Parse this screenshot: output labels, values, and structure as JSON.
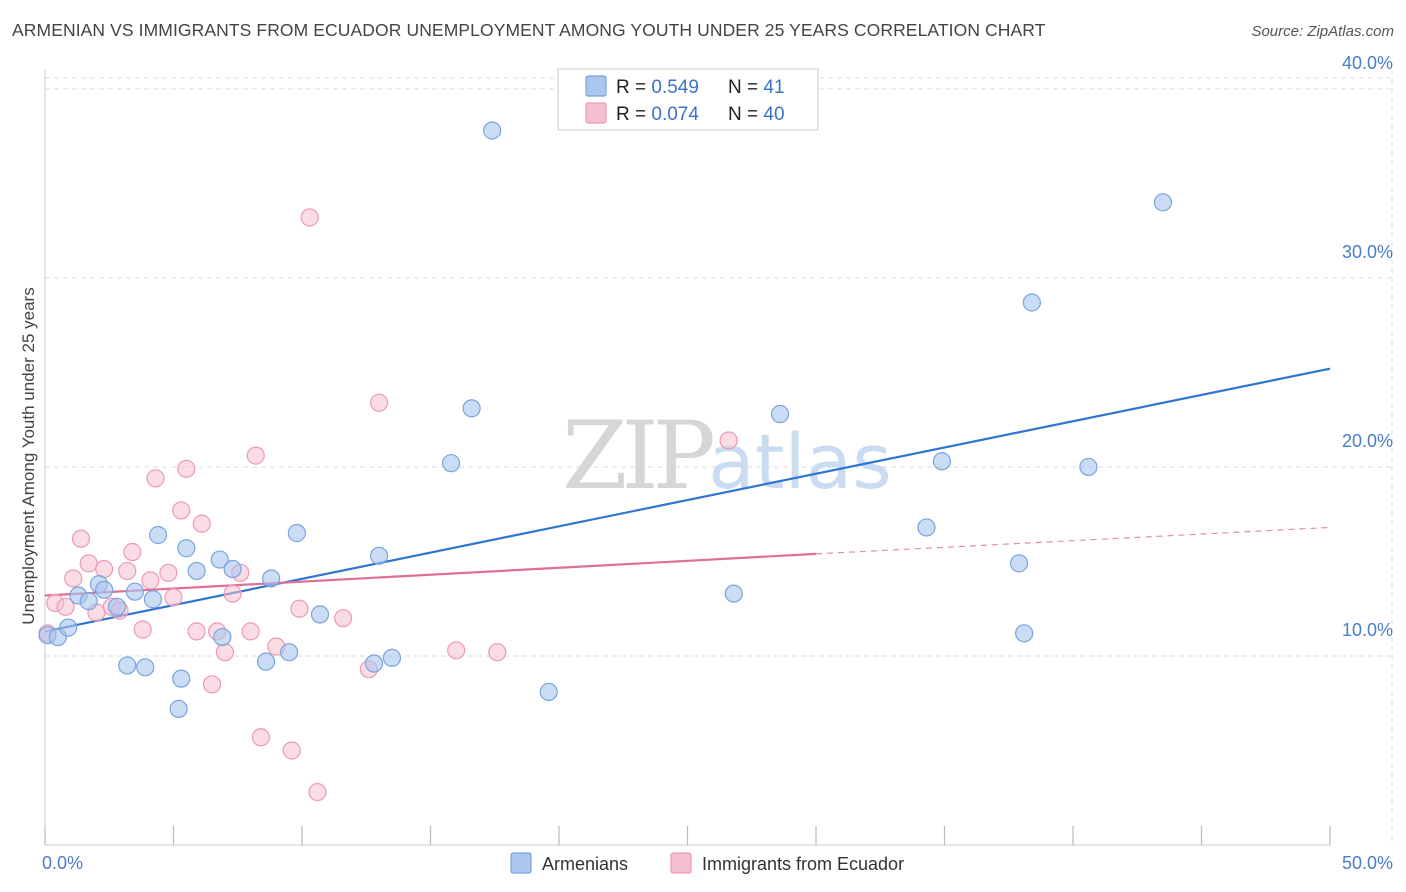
{
  "title": "ARMENIAN VS IMMIGRANTS FROM ECUADOR UNEMPLOYMENT AMONG YOUTH UNDER 25 YEARS CORRELATION CHART",
  "source": "Source: ZipAtlas.com",
  "watermark": {
    "zip": "ZIP",
    "atlas": "atlas"
  },
  "colors": {
    "armenians_fill": "#a9c6ef",
    "armenians_stroke": "#7aa4dc",
    "armenians_line": "#2f74d0",
    "ecuador_fill": "#f6bfd0",
    "ecuador_stroke": "#ec9ab5",
    "ecuador_line": "#e06f98",
    "tick_text": "#4a7cc7",
    "grid": "#dddddd"
  },
  "legend": {
    "rows": [
      {
        "r_label": "R = ",
        "r_value": "0.549",
        "n_label": "N = ",
        "n_value": "41"
      },
      {
        "r_label": "R = ",
        "r_value": "0.074",
        "n_label": "N = ",
        "n_value": "40"
      }
    ]
  },
  "bottom_legend": [
    "Armenians",
    "Immigrants from Ecuador"
  ],
  "chart_data": {
    "type": "scatter",
    "title": "ARMENIAN VS IMMIGRANTS FROM ECUADOR UNEMPLOYMENT AMONG YOUTH UNDER 25 YEARS CORRELATION CHART",
    "xlabel": "",
    "ylabel": "Unemployment Among Youth under 25 years",
    "xlim": [
      0,
      50
    ],
    "ylim": [
      0,
      41
    ],
    "x_tick_labels": [
      {
        "value": 0,
        "label": "0.0%"
      },
      {
        "value": 50,
        "label": "50.0%"
      }
    ],
    "x_minor_ticks": [
      0,
      5,
      10,
      15,
      20,
      25,
      30,
      35,
      40,
      45,
      50
    ],
    "y_ticks": [
      {
        "value": 10,
        "label": "10.0%"
      },
      {
        "value": 20,
        "label": "20.0%"
      },
      {
        "value": 30,
        "label": "30.0%"
      },
      {
        "value": 40,
        "label": "40.0%"
      }
    ],
    "grid": true,
    "legend_position": "top-center",
    "series": [
      {
        "name": "Armenians",
        "r": 0.549,
        "n": 41,
        "points": [
          [
            0.1,
            11.1
          ],
          [
            0.5,
            11.0
          ],
          [
            0.9,
            11.5
          ],
          [
            1.3,
            13.2
          ],
          [
            1.7,
            12.9
          ],
          [
            2.1,
            13.8
          ],
          [
            2.3,
            13.5
          ],
          [
            2.8,
            12.6
          ],
          [
            3.2,
            9.5
          ],
          [
            3.5,
            13.4
          ],
          [
            3.9,
            9.4
          ],
          [
            4.2,
            13.0
          ],
          [
            4.4,
            16.4
          ],
          [
            5.2,
            7.2
          ],
          [
            5.3,
            8.8
          ],
          [
            5.5,
            15.7
          ],
          [
            5.9,
            14.5
          ],
          [
            6.8,
            15.1
          ],
          [
            6.9,
            11.0
          ],
          [
            7.3,
            14.6
          ],
          [
            8.6,
            9.7
          ],
          [
            8.8,
            14.1
          ],
          [
            9.5,
            10.2
          ],
          [
            9.8,
            16.5
          ],
          [
            10.7,
            12.2
          ],
          [
            13.0,
            15.3
          ],
          [
            12.8,
            9.6
          ],
          [
            13.5,
            9.9
          ],
          [
            15.8,
            20.2
          ],
          [
            16.6,
            23.1
          ],
          [
            17.4,
            37.8
          ],
          [
            19.6,
            8.1
          ],
          [
            26.8,
            13.3
          ],
          [
            28.6,
            22.8
          ],
          [
            34.3,
            16.8
          ],
          [
            34.9,
            20.3
          ],
          [
            37.9,
            14.9
          ],
          [
            38.1,
            11.2
          ],
          [
            38.4,
            28.7
          ],
          [
            40.6,
            20.0
          ],
          [
            43.5,
            34.0
          ]
        ],
        "trend": {
          "x": [
            0,
            50
          ],
          "y": [
            11.3,
            25.2
          ]
        }
      },
      {
        "name": "Immigrants from Ecuador",
        "r": 0.074,
        "n": 40,
        "points": [
          [
            0.1,
            11.2
          ],
          [
            0.4,
            12.8
          ],
          [
            0.8,
            12.6
          ],
          [
            1.1,
            14.1
          ],
          [
            1.4,
            16.2
          ],
          [
            1.7,
            14.9
          ],
          [
            2.0,
            12.3
          ],
          [
            2.3,
            14.6
          ],
          [
            2.6,
            12.6
          ],
          [
            2.9,
            12.4
          ],
          [
            3.2,
            14.5
          ],
          [
            3.4,
            15.5
          ],
          [
            3.8,
            11.4
          ],
          [
            4.1,
            14.0
          ],
          [
            4.3,
            19.4
          ],
          [
            4.8,
            14.4
          ],
          [
            5.0,
            13.1
          ],
          [
            5.3,
            17.7
          ],
          [
            5.5,
            19.9
          ],
          [
            5.9,
            11.3
          ],
          [
            6.1,
            17.0
          ],
          [
            6.5,
            8.5
          ],
          [
            6.7,
            11.3
          ],
          [
            7.0,
            10.2
          ],
          [
            7.3,
            13.3
          ],
          [
            7.6,
            14.4
          ],
          [
            8.0,
            11.3
          ],
          [
            8.2,
            20.6
          ],
          [
            8.4,
            5.7
          ],
          [
            9.0,
            10.5
          ],
          [
            9.6,
            5.0
          ],
          [
            9.9,
            12.5
          ],
          [
            10.3,
            33.2
          ],
          [
            10.6,
            2.8
          ],
          [
            11.6,
            12.0
          ],
          [
            12.6,
            9.3
          ],
          [
            13.0,
            23.4
          ],
          [
            16.0,
            10.3
          ],
          [
            17.6,
            10.2
          ],
          [
            26.6,
            21.4
          ]
        ],
        "trend": {
          "x": [
            0,
            30
          ],
          "y": [
            13.2,
            15.4
          ]
        },
        "trend_dashed": {
          "x": [
            30,
            50
          ],
          "y": [
            15.4,
            16.8
          ]
        }
      }
    ]
  }
}
